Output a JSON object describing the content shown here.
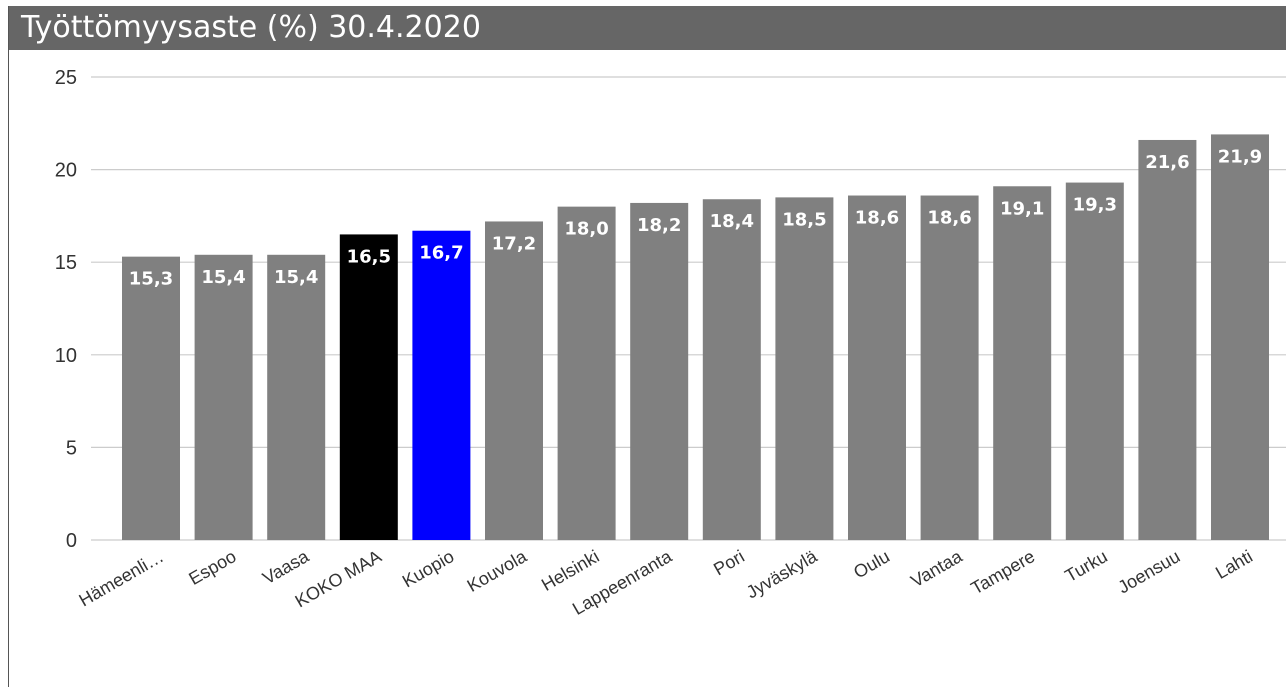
{
  "title": "Työttömyysaste (%) 30.4.2020",
  "colors": {
    "title_background": "#666666",
    "bar_default": "#808080",
    "bar_highlight_total": "#000000",
    "bar_highlight_city": "#0000ff",
    "gridline": "#cccccc",
    "label_text": "#ffffff",
    "axis_text": "#333333"
  },
  "chart_data": {
    "type": "bar",
    "title": "Työttömyysaste (%) 30.4.2020",
    "categories": [
      "Hämeenli…",
      "Espoo",
      "Vaasa",
      "KOKO MAA",
      "Kuopio",
      "Kouvola",
      "Helsinki",
      "Lappeenranta",
      "Pori",
      "Jyväskylä",
      "Oulu",
      "Vantaa",
      "Tampere",
      "Turku",
      "Joensuu",
      "Lahti"
    ],
    "values": [
      15.3,
      15.4,
      15.4,
      16.5,
      16.7,
      17.2,
      18.0,
      18.2,
      18.4,
      18.5,
      18.6,
      18.6,
      19.1,
      19.3,
      21.6,
      21.9
    ],
    "data_labels": [
      "15,3",
      "15,4",
      "15,4",
      "16,5",
      "16,7",
      "17,2",
      "18,0",
      "18,2",
      "18,4",
      "18,5",
      "18,6",
      "18,6",
      "19,1",
      "19,3",
      "21,6",
      "21,9"
    ],
    "bar_colors": [
      "#808080",
      "#808080",
      "#808080",
      "#000000",
      "#0000ff",
      "#808080",
      "#808080",
      "#808080",
      "#808080",
      "#808080",
      "#808080",
      "#808080",
      "#808080",
      "#808080",
      "#808080",
      "#808080"
    ],
    "y_ticks": [
      "0",
      "5",
      "10",
      "15",
      "20",
      "25"
    ],
    "ylim": [
      0,
      25
    ],
    "xlabel": "",
    "ylabel": "",
    "grid": true,
    "legend": "none"
  }
}
